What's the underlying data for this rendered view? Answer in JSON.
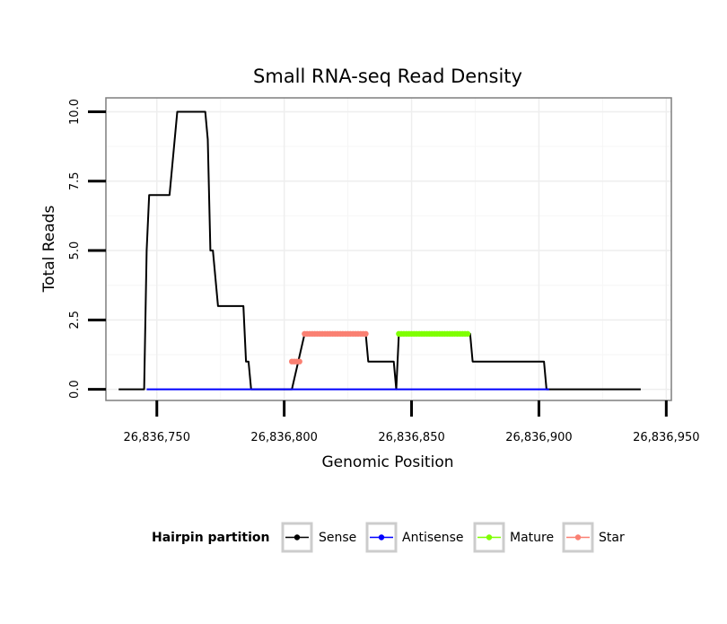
{
  "chart_data": {
    "type": "line",
    "title": "Small RNA-seq Read Density",
    "xlabel": "Genomic Position",
    "ylabel": "Total Reads",
    "xlim": [
      26836730,
      26836952
    ],
    "ylim": [
      -0.4,
      10.5
    ],
    "x_ticks": [
      26836750,
      26836800,
      26836850,
      26836900,
      26836950
    ],
    "x_tick_labels": [
      "26,836,750",
      "26,836,800",
      "26,836,850",
      "26,836,900",
      "26,836,950"
    ],
    "y_ticks": [
      0,
      2.5,
      5,
      7.5,
      10
    ],
    "y_tick_labels": [
      "0.0",
      "2.5",
      "5.0",
      "7.5",
      "10.0"
    ],
    "grid": true,
    "legend": {
      "title": "Hairpin partition",
      "position": "bottom",
      "entries": [
        "Sense",
        "Antisense",
        "Mature",
        "Star"
      ]
    },
    "series": [
      {
        "name": "Sense",
        "color": "#000000",
        "style": "line",
        "points": [
          [
            26836735,
            0
          ],
          [
            26836745,
            0
          ],
          [
            26836746,
            5
          ],
          [
            26836747,
            7
          ],
          [
            26836755,
            7
          ],
          [
            26836758,
            10
          ],
          [
            26836769,
            10
          ],
          [
            26836770,
            9
          ],
          [
            26836771,
            5
          ],
          [
            26836772,
            5
          ],
          [
            26836774,
            3
          ],
          [
            26836784,
            3
          ],
          [
            26836785,
            1
          ],
          [
            26836786,
            1
          ],
          [
            26836787,
            0
          ],
          [
            26836803,
            0
          ],
          [
            26836808,
            2
          ],
          [
            26836832,
            2
          ],
          [
            26836833,
            1
          ],
          [
            26836843,
            1
          ],
          [
            26836844,
            0
          ],
          [
            26836845,
            2
          ],
          [
            26836873,
            2
          ],
          [
            26836874,
            1
          ],
          [
            26836902,
            1
          ],
          [
            26836903,
            0
          ],
          [
            26836940,
            0
          ]
        ]
      },
      {
        "name": "Antisense",
        "color": "#0000FF",
        "style": "line",
        "points": [
          [
            26836746,
            0
          ],
          [
            26836904,
            0
          ]
        ]
      },
      {
        "name": "Mature",
        "color": "#7FFF00",
        "style": "points",
        "points": [
          [
            26836845,
            2
          ],
          [
            26836846,
            2
          ],
          [
            26836847,
            2
          ],
          [
            26836848,
            2
          ],
          [
            26836849,
            2
          ],
          [
            26836850,
            2
          ],
          [
            26836851,
            2
          ],
          [
            26836852,
            2
          ],
          [
            26836853,
            2
          ],
          [
            26836854,
            2
          ],
          [
            26836855,
            2
          ],
          [
            26836856,
            2
          ],
          [
            26836857,
            2
          ],
          [
            26836858,
            2
          ],
          [
            26836859,
            2
          ],
          [
            26836860,
            2
          ],
          [
            26836861,
            2
          ],
          [
            26836862,
            2
          ],
          [
            26836863,
            2
          ],
          [
            26836864,
            2
          ],
          [
            26836865,
            2
          ],
          [
            26836866,
            2
          ],
          [
            26836867,
            2
          ],
          [
            26836868,
            2
          ],
          [
            26836869,
            2
          ],
          [
            26836870,
            2
          ],
          [
            26836871,
            2
          ],
          [
            26836872,
            2
          ]
        ]
      },
      {
        "name": "Star",
        "color": "#FA8072",
        "style": "points",
        "points": [
          [
            26836803,
            1
          ],
          [
            26836804,
            1
          ],
          [
            26836805,
            1
          ],
          [
            26836806,
            1
          ],
          [
            26836808,
            2
          ],
          [
            26836809,
            2
          ],
          [
            26836810,
            2
          ],
          [
            26836811,
            2
          ],
          [
            26836812,
            2
          ],
          [
            26836813,
            2
          ],
          [
            26836814,
            2
          ],
          [
            26836815,
            2
          ],
          [
            26836816,
            2
          ],
          [
            26836817,
            2
          ],
          [
            26836818,
            2
          ],
          [
            26836819,
            2
          ],
          [
            26836820,
            2
          ],
          [
            26836821,
            2
          ],
          [
            26836822,
            2
          ],
          [
            26836823,
            2
          ],
          [
            26836824,
            2
          ],
          [
            26836825,
            2
          ],
          [
            26836826,
            2
          ],
          [
            26836827,
            2
          ],
          [
            26836828,
            2
          ],
          [
            26836829,
            2
          ],
          [
            26836830,
            2
          ],
          [
            26836831,
            2
          ],
          [
            26836832,
            2
          ]
        ]
      }
    ]
  }
}
